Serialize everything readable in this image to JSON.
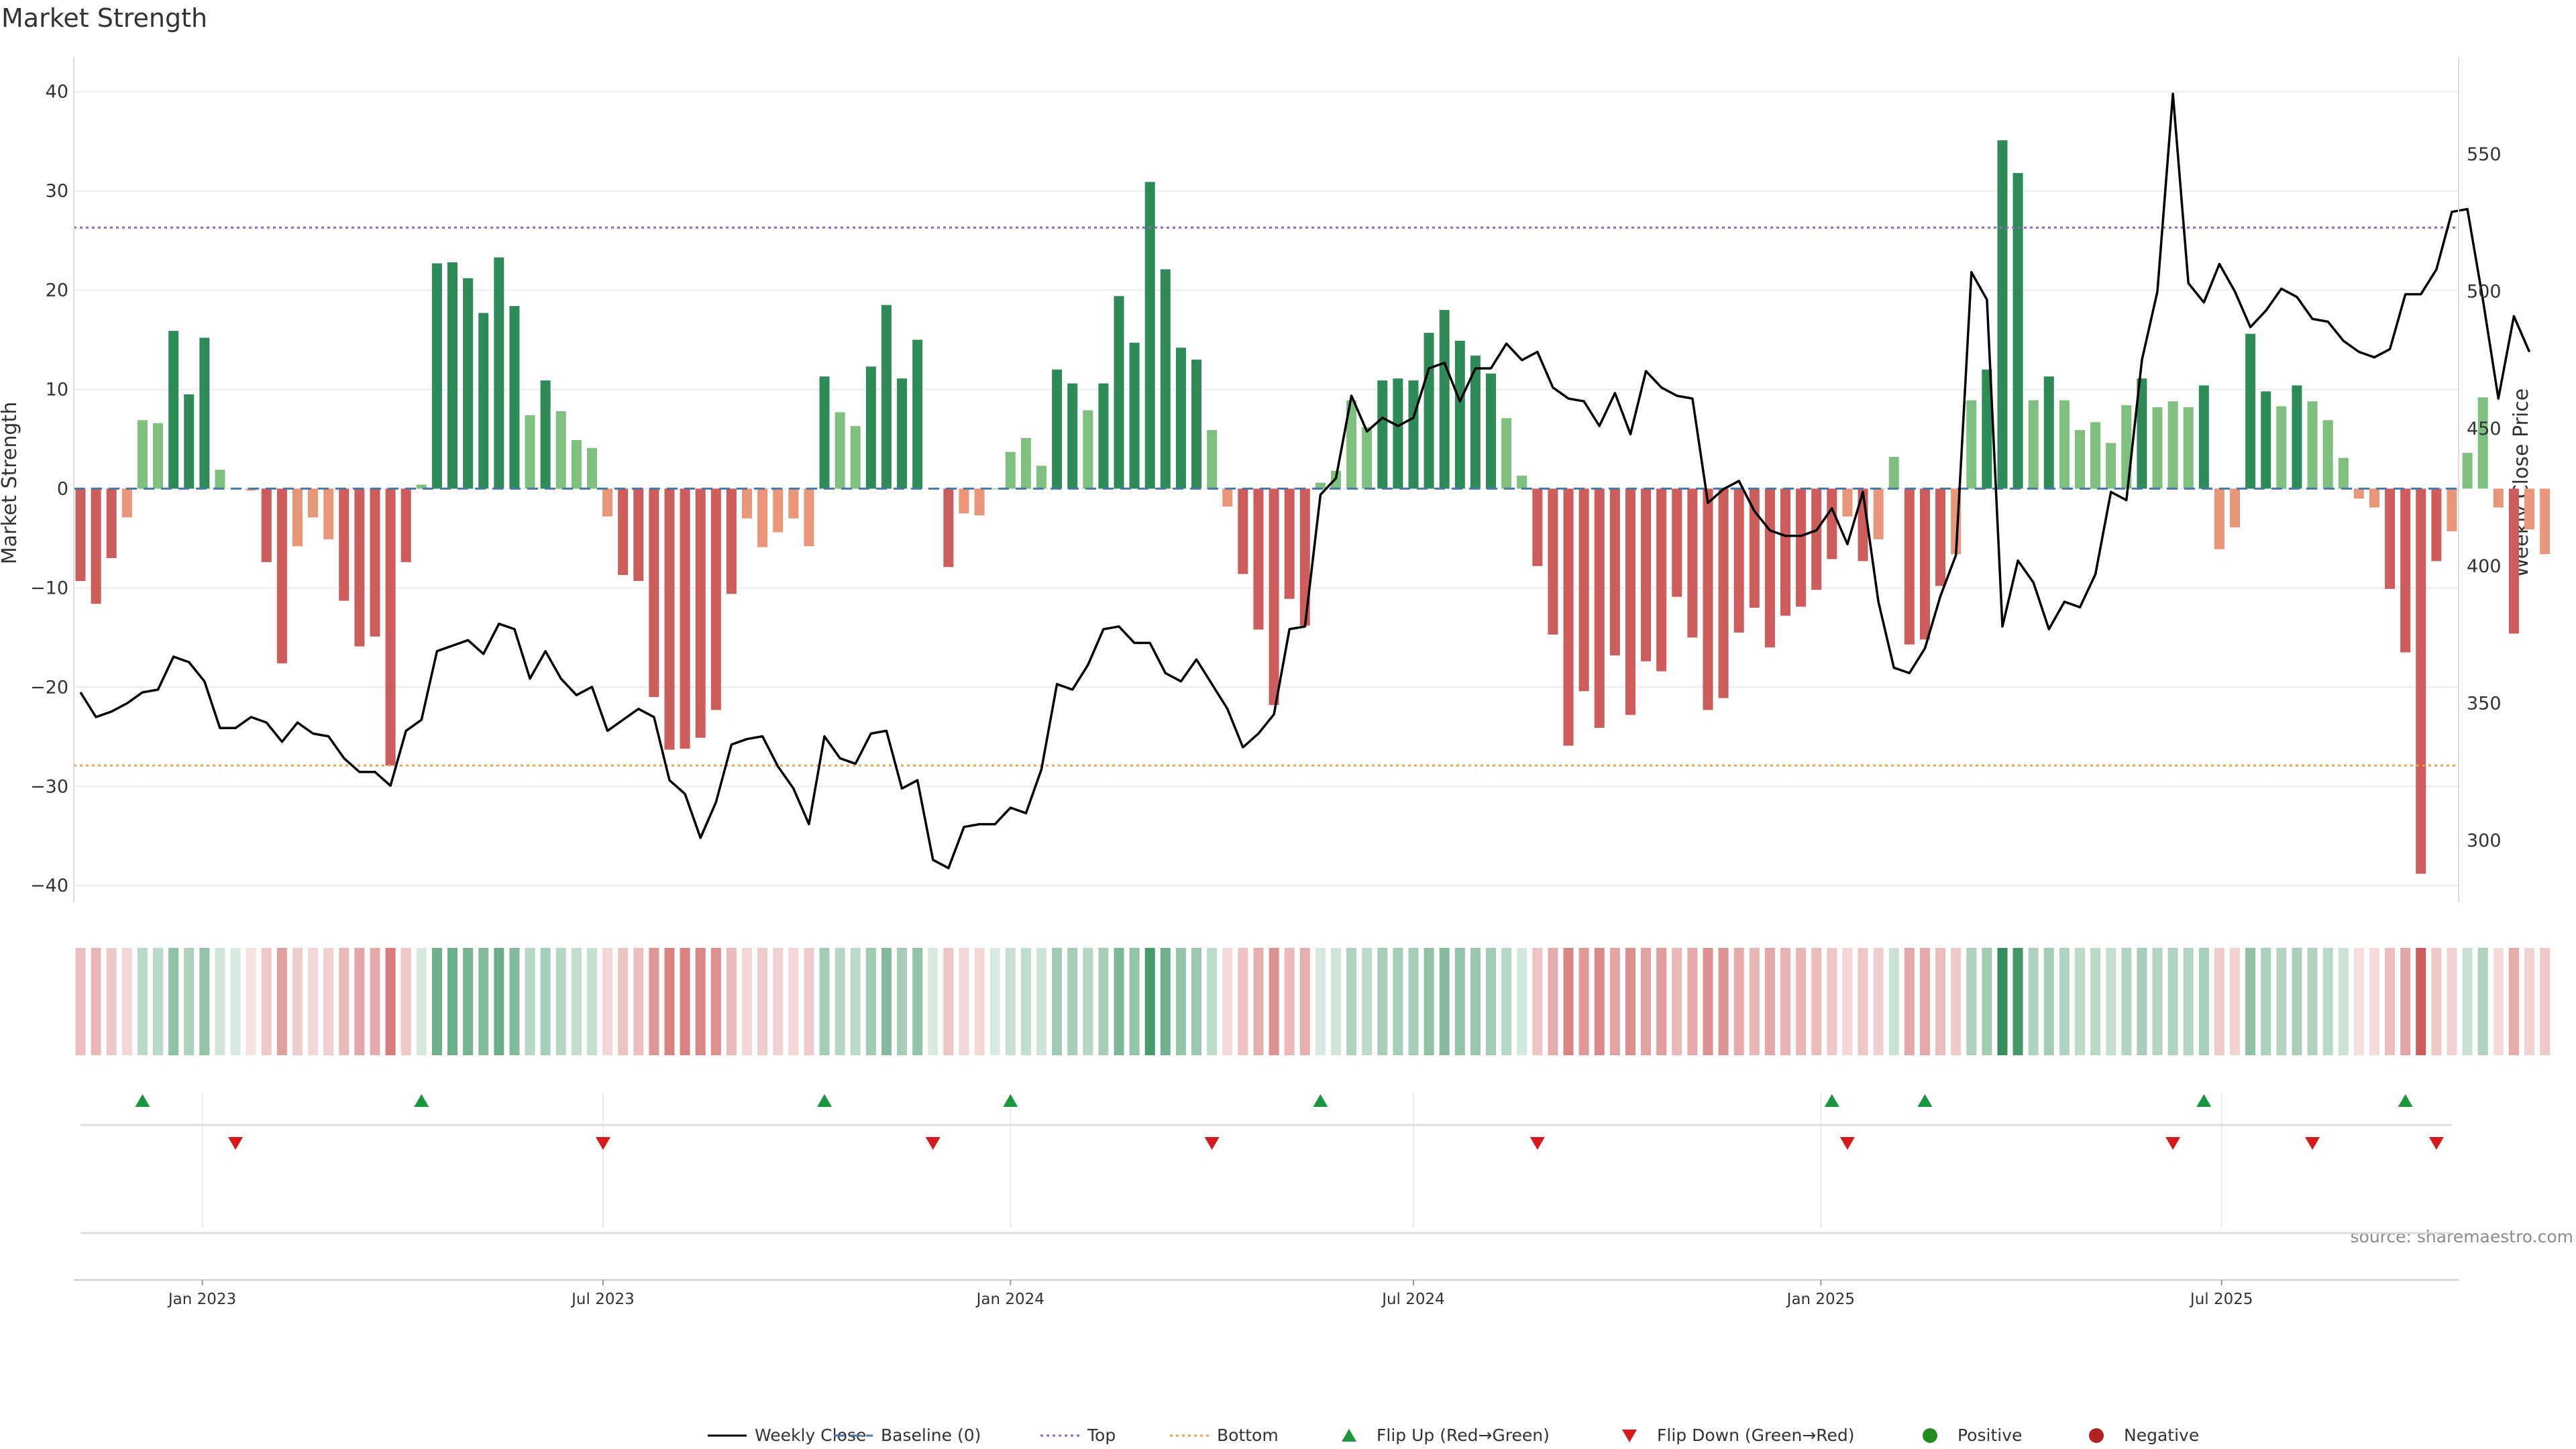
{
  "chart_data": {
    "type": "bar",
    "title": "Market Strength",
    "ylabel_left": "Market Strength",
    "ylabel_right": "Weekly Close Price",
    "source": "source: sharemaestro.com",
    "ylim_left": [
      -41,
      42
    ],
    "ylim_right": [
      280,
      580
    ],
    "yticks_left": [
      40,
      30,
      20,
      10,
      0,
      -10,
      -20,
      -30,
      -40
    ],
    "yticks_right": [
      550,
      500,
      450,
      400,
      350,
      300
    ],
    "date_range": [
      "2022-11-07",
      "2025-10-13"
    ],
    "date_ticks": [
      {
        "date": "2023-01-01",
        "label": "Jan 2023"
      },
      {
        "date": "2023-07-01",
        "label": "Jul 2023"
      },
      {
        "date": "2024-01-01",
        "label": "Jan 2024"
      },
      {
        "date": "2024-07-01",
        "label": "Jul 2024"
      },
      {
        "date": "2025-01-01",
        "label": "Jan 2025"
      },
      {
        "date": "2025-07-01",
        "label": "Jul 2025"
      }
    ],
    "grid": true,
    "reference_lines": {
      "baseline": 0,
      "top": 26.3,
      "bottom": -27.9
    },
    "series": [
      {
        "name": "Weekly Close",
        "color": "#000000",
        "values": [
          354,
          345,
          347,
          350,
          354,
          355,
          367,
          365,
          358,
          341,
          341,
          345,
          343,
          336,
          343,
          339,
          338,
          330,
          325,
          325,
          320,
          340,
          344,
          369,
          371,
          373,
          368,
          379,
          377,
          359,
          369,
          359,
          353,
          356,
          340,
          344,
          348,
          345,
          322,
          317,
          301,
          314,
          335,
          337,
          338,
          327,
          319,
          306,
          338,
          330,
          328,
          339,
          340,
          319,
          322,
          293,
          290,
          305,
          306,
          306,
          312,
          310,
          326,
          357,
          355,
          364,
          377,
          378,
          372,
          372,
          361,
          358,
          366,
          357,
          348,
          334,
          339,
          346,
          377,
          378,
          426,
          432,
          462,
          449,
          454,
          451,
          454,
          472,
          474,
          460,
          472,
          472,
          481,
          475,
          478,
          465,
          461,
          460,
          451,
          463,
          448,
          471,
          465,
          462,
          461,
          423,
          428,
          431,
          420,
          413,
          411,
          411,
          413,
          421,
          408,
          427,
          387,
          363,
          361,
          370,
          389,
          404,
          507,
          497,
          378,
          402,
          394,
          377,
          387,
          385,
          397,
          427,
          424,
          475,
          500,
          572,
          503,
          496,
          510,
          500,
          487,
          493,
          501,
          498,
          490,
          489,
          482,
          478,
          476,
          479,
          499,
          499,
          508,
          529,
          530,
          497,
          461,
          491,
          478
        ]
      },
      {
        "name": "Market Strength",
        "values": [
          -9.3,
          -11.6,
          -7,
          -2.9,
          6.9,
          6.6,
          15.9,
          9.5,
          15.2,
          1.9,
          0,
          -0.2,
          -7.4,
          -17.6,
          -5.8,
          -2.9,
          -5.1,
          -11.3,
          -15.9,
          -14.9,
          -27.9,
          -7.4,
          0.4,
          22.7,
          22.8,
          21.2,
          17.7,
          23.3,
          18.4,
          7.4,
          10.9,
          7.8,
          4.9,
          4.1,
          -2.8,
          -8.7,
          -9.3,
          -21,
          -26.3,
          -26.2,
          -25.1,
          -22.3,
          -10.6,
          -3,
          -5.9,
          -4.4,
          -3,
          -5.8,
          11.3,
          7.7,
          6.3,
          12.3,
          18.5,
          11.1,
          15,
          0,
          -7.9,
          -2.5,
          -2.7,
          0,
          3.7,
          5.1,
          2.3,
          12,
          10.6,
          7.9,
          10.6,
          19.4,
          14.7,
          30.9,
          22.1,
          14.2,
          13,
          5.9,
          -1.8,
          -8.6,
          -14.2,
          -21.8,
          -11.1,
          -13.8,
          0.6,
          1.8,
          8.9,
          6.2,
          10.9,
          11.1,
          10.9,
          15.7,
          18,
          14.9,
          13.4,
          11.6,
          7.1,
          1.3,
          -7.8,
          -14.7,
          -25.9,
          -20.4,
          -24.1,
          -16.8,
          -22.8,
          -17.4,
          -18.4,
          -10.9,
          -15,
          -22.3,
          -21.1,
          -14.5,
          -12,
          -16,
          -12.8,
          -11.9,
          -10.2,
          -7.1,
          -2.8,
          -7.3,
          -5.1,
          3.2,
          -15.7,
          -15.2,
          -9.8,
          -6.6,
          8.9,
          12,
          35.1,
          31.8,
          8.9,
          11.3,
          8.9,
          5.9,
          6.7,
          4.6,
          8.4,
          11.1,
          8.2,
          8.8,
          8.2,
          10.4,
          -6.1,
          -3.9,
          15.6,
          9.8,
          8.3,
          10.4,
          8.8,
          6.9,
          3.1,
          -1,
          -1.9,
          -10.1,
          -16.5,
          -38.8,
          -7.3,
          -4.3,
          3.6,
          9.2,
          -1.9,
          -14.6,
          -4.1,
          -6.6
        ]
      }
    ],
    "flip_markers": [
      {
        "date": "2022-12-05",
        "type": "up"
      },
      {
        "date": "2023-01-16",
        "type": "down"
      },
      {
        "date": "2023-04-10",
        "type": "up"
      },
      {
        "date": "2023-07-01",
        "type": "down"
      },
      {
        "date": "2023-10-09",
        "type": "up"
      },
      {
        "date": "2023-11-27",
        "type": "down"
      },
      {
        "date": "2024-01-01",
        "type": "up"
      },
      {
        "date": "2024-04-01",
        "type": "down"
      },
      {
        "date": "2024-05-20",
        "type": "up"
      },
      {
        "date": "2024-08-26",
        "type": "down"
      },
      {
        "date": "2025-01-06",
        "type": "up"
      },
      {
        "date": "2025-01-13",
        "type": "down"
      },
      {
        "date": "2025-02-17",
        "type": "up"
      },
      {
        "date": "2025-06-09",
        "type": "down"
      },
      {
        "date": "2025-06-23",
        "type": "up"
      },
      {
        "date": "2025-08-11",
        "type": "down"
      },
      {
        "date": "2025-09-22",
        "type": "up"
      },
      {
        "date": "2025-10-06",
        "type": "down"
      }
    ],
    "legend": [
      {
        "label": "Weekly Close",
        "kind": "line-solid",
        "color": "#000000"
      },
      {
        "label": "Baseline (0)",
        "kind": "line-dashed",
        "color": "#4878a8"
      },
      {
        "label": "Top",
        "kind": "line-dotted",
        "color": "#9467bd"
      },
      {
        "label": "Bottom",
        "kind": "line-dotted",
        "color": "#f0a050"
      },
      {
        "label": "Flip Up (Red→Green)",
        "kind": "tri-up",
        "color": "#1a9641"
      },
      {
        "label": "Flip Down (Green→Red)",
        "kind": "tri-down",
        "color": "#d7191c"
      },
      {
        "label": "Positive",
        "kind": "dot",
        "color": "#228b22"
      },
      {
        "label": "Negative",
        "kind": "dot",
        "color": "#b22222"
      }
    ],
    "legend_position": "bottom-center",
    "colors": {
      "strong_green": "#2e8b57",
      "light_green": "#7fbf7f",
      "strong_red": "#cd5c5c",
      "light_red": "#e9967a",
      "top_line": "#9467bd",
      "bottom_line": "#f0a050",
      "baseline": "#4878a8",
      "flip_up": "#1a9641",
      "flip_down": "#d7191c"
    }
  }
}
